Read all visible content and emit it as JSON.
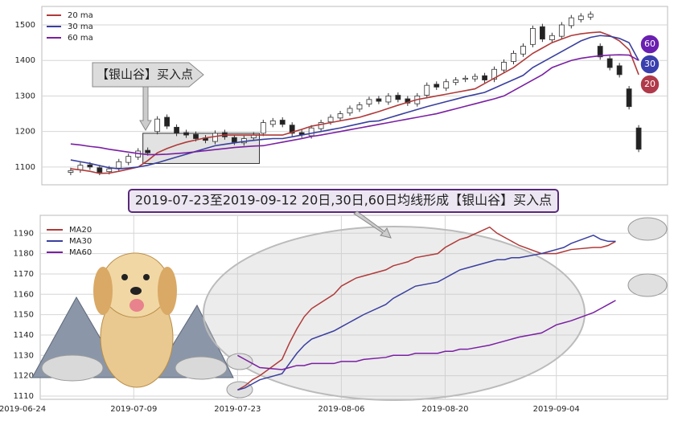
{
  "chart_data": [
    {
      "type": "candlestick",
      "open": [
        1085,
        1092,
        1106,
        1098,
        1087,
        1097,
        1113,
        1128,
        1147,
        1200,
        1240,
        1212,
        1197,
        1192,
        1182,
        1172,
        1197,
        1183,
        1168,
        1182,
        1195,
        1220,
        1232,
        1218,
        1197,
        1188,
        1208,
        1227,
        1238,
        1252,
        1263,
        1277,
        1292,
        1283,
        1302,
        1292,
        1278,
        1302,
        1333,
        1322,
        1338,
        1347,
        1348,
        1357,
        1347,
        1373,
        1397,
        1418,
        1445,
        1495,
        1458,
        1468,
        1498,
        1515,
        1522,
        1440,
        1405,
        1385,
        1320,
        1210
      ],
      "high": [
        1098,
        1113,
        1114,
        1106,
        1103,
        1123,
        1138,
        1153,
        1155,
        1243,
        1248,
        1220,
        1205,
        1200,
        1190,
        1203,
        1205,
        1191,
        1188,
        1198,
        1233,
        1238,
        1240,
        1226,
        1205,
        1218,
        1233,
        1248,
        1258,
        1273,
        1283,
        1298,
        1300,
        1308,
        1310,
        1300,
        1308,
        1338,
        1341,
        1348,
        1353,
        1358,
        1363,
        1365,
        1383,
        1403,
        1428,
        1448,
        1498,
        1503,
        1478,
        1508,
        1528,
        1533,
        1538,
        1448,
        1413,
        1393,
        1328,
        1218
      ],
      "low": [
        1077,
        1084,
        1092,
        1077,
        1079,
        1089,
        1105,
        1120,
        1132,
        1192,
        1207,
        1187,
        1182,
        1172,
        1167,
        1164,
        1177,
        1162,
        1160,
        1174,
        1187,
        1212,
        1212,
        1187,
        1182,
        1180,
        1200,
        1219,
        1230,
        1244,
        1255,
        1269,
        1277,
        1275,
        1282,
        1272,
        1270,
        1294,
        1317,
        1314,
        1330,
        1339,
        1340,
        1337,
        1339,
        1365,
        1389,
        1410,
        1437,
        1452,
        1450,
        1460,
        1490,
        1507,
        1514,
        1402,
        1372,
        1352,
        1262,
        1142
      ],
      "close": [
        1090,
        1105,
        1100,
        1085,
        1095,
        1115,
        1130,
        1145,
        1140,
        1235,
        1215,
        1195,
        1190,
        1180,
        1175,
        1195,
        1185,
        1170,
        1180,
        1190,
        1225,
        1230,
        1220,
        1195,
        1190,
        1210,
        1225,
        1240,
        1250,
        1265,
        1275,
        1290,
        1285,
        1300,
        1290,
        1280,
        1300,
        1330,
        1325,
        1340,
        1345,
        1350,
        1355,
        1345,
        1375,
        1395,
        1420,
        1440,
        1490,
        1460,
        1470,
        1500,
        1520,
        1525,
        1530,
        1410,
        1380,
        1360,
        1270,
        1150
      ],
      "series": [
        {
          "name": "20 ma",
          "color": "#b03a3a",
          "values": [
            1095,
            1092,
            1088,
            1082,
            1083,
            1088,
            1094,
            1100,
            1118,
            1140,
            1152,
            1162,
            1170,
            1176,
            1182,
            1186,
            1190,
            1190,
            1190,
            1190,
            1190,
            1190,
            1190,
            1198,
            1206,
            1215,
            1220,
            1225,
            1230,
            1235,
            1240,
            1248,
            1256,
            1265,
            1274,
            1282,
            1290,
            1295,
            1300,
            1305,
            1310,
            1315,
            1320,
            1335,
            1350,
            1365,
            1380,
            1400,
            1420,
            1435,
            1450,
            1460,
            1470,
            1475,
            1478,
            1480,
            1470,
            1455,
            1430,
            1360
          ]
        },
        {
          "name": "30 ma",
          "color": "#3a3f9e",
          "values": [
            1120,
            1115,
            1110,
            1104,
            1098,
            1095,
            1097,
            1100,
            1105,
            1112,
            1120,
            1128,
            1136,
            1144,
            1152,
            1160,
            1164,
            1168,
            1172,
            1175,
            1178,
            1180,
            1180,
            1185,
            1190,
            1195,
            1200,
            1205,
            1210,
            1216,
            1222,
            1228,
            1230,
            1238,
            1246,
            1254,
            1262,
            1270,
            1277,
            1284,
            1291,
            1298,
            1304,
            1310,
            1322,
            1334,
            1346,
            1358,
            1380,
            1395,
            1410,
            1425,
            1440,
            1455,
            1465,
            1470,
            1468,
            1462,
            1450,
            1400
          ]
        },
        {
          "name": "60 ma",
          "color": "#7a1fa2",
          "values": [
            1165,
            1162,
            1158,
            1155,
            1150,
            1146,
            1142,
            1138,
            1135,
            1135,
            1136,
            1138,
            1140,
            1143,
            1146,
            1149,
            1152,
            1155,
            1157,
            1159,
            1160,
            1165,
            1170,
            1175,
            1180,
            1186,
            1190,
            1195,
            1200,
            1205,
            1210,
            1215,
            1220,
            1225,
            1230,
            1235,
            1240,
            1245,
            1250,
            1257,
            1264,
            1271,
            1278,
            1285,
            1292,
            1300,
            1315,
            1330,
            1345,
            1360,
            1380,
            1390,
            1400,
            1406,
            1410,
            1413,
            1415,
            1416,
            1415,
            1400
          ]
        }
      ],
      "xlim": [
        -3,
        62
      ],
      "ylim": [
        1050,
        1552
      ],
      "yticks": [
        1100,
        1200,
        1300,
        1400,
        1500
      ],
      "grid": true,
      "legend": "upper left",
      "annotation": "【银山谷】买入点",
      "highlight": {
        "x": [
          7.5,
          19.6
        ],
        "y": [
          1110,
          1195
        ]
      },
      "end_badges": [
        {
          "label": "60",
          "color": "#6a1fb0"
        },
        {
          "label": "30",
          "color": "#3a3fae"
        },
        {
          "label": "20",
          "color": "#b03a4a"
        }
      ]
    },
    {
      "type": "line",
      "title": "2019-07-23至2019-09-12 20日,30日,60日均线形成【银山谷】买入点",
      "x": [
        "2019-07-23",
        "2019-07-24",
        "2019-07-25",
        "2019-07-26",
        "2019-07-29",
        "2019-07-30",
        "2019-07-31",
        "2019-08-01",
        "2019-08-02",
        "2019-08-05",
        "2019-08-06",
        "2019-08-07",
        "2019-08-08",
        "2019-08-09",
        "2019-08-12",
        "2019-08-13",
        "2019-08-14",
        "2019-08-15",
        "2019-08-16",
        "2019-08-19",
        "2019-08-20",
        "2019-08-21",
        "2019-08-22",
        "2019-08-23",
        "2019-08-26",
        "2019-08-27",
        "2019-08-28",
        "2019-08-29",
        "2019-08-30",
        "2019-09-02",
        "2019-09-03",
        "2019-09-04",
        "2019-09-05",
        "2019-09-06",
        "2019-09-09",
        "2019-09-10",
        "2019-09-11",
        "2019-09-12"
      ],
      "series": [
        {
          "name": "MA20",
          "color": "#b03a3a",
          "values": [
            1113,
            1115,
            1118,
            1120,
            1128,
            1136,
            1143,
            1149,
            1153,
            1160,
            1164,
            1166,
            1168,
            1169,
            1172,
            1174,
            1175,
            1176,
            1178,
            1180,
            1183,
            1185,
            1187,
            1188,
            1193,
            1190,
            1188,
            1186,
            1184,
            1180,
            1180,
            1180,
            1181,
            1182,
            1183,
            1183,
            1184,
            1186
          ]
        },
        {
          "name": "MA30",
          "color": "#3a3f9e",
          "values": [
            1113,
            1114,
            1116,
            1118,
            1121,
            1126,
            1131,
            1135,
            1138,
            1142,
            1144,
            1146,
            1148,
            1150,
            1155,
            1158,
            1160,
            1162,
            1164,
            1166,
            1168,
            1170,
            1172,
            1173,
            1176,
            1177,
            1177,
            1178,
            1178,
            1180,
            1181,
            1182,
            1183,
            1185,
            1189,
            1187,
            1186,
            1186
          ]
        },
        {
          "name": "MA60",
          "color": "#7a1fa2",
          "values": [
            1130,
            1128,
            1126,
            1124,
            1123,
            1124,
            1125,
            1125,
            1126,
            1126,
            1127,
            1127,
            1127,
            1128,
            1129,
            1130,
            1130,
            1130,
            1131,
            1131,
            1132,
            1132,
            1133,
            1133,
            1135,
            1136,
            1137,
            1138,
            1139,
            1141,
            1143,
            1145,
            1146,
            1147,
            1151,
            1153,
            1155,
            1157
          ]
        }
      ],
      "xlim": [
        "2019-06-24",
        "2019-09-19"
      ],
      "xticks": [
        "2019-06-24",
        "2019-07-09",
        "2019-07-23",
        "2019-08-06",
        "2019-08-20",
        "2019-09-04"
      ],
      "ylim": [
        1108.4,
        1198.8
      ],
      "yticks": [
        1110,
        1120,
        1130,
        1140,
        1150,
        1160,
        1170,
        1180,
        1190
      ],
      "grid": true,
      "legend": "upper left"
    }
  ]
}
